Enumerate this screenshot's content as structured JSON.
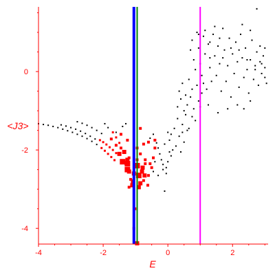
{
  "chart_data": {
    "type": "scatter",
    "title": "",
    "xlabel": "E",
    "ylabel": "<J3>",
    "xlim": [
      -4,
      3.1
    ],
    "ylim": [
      -4.4,
      1.65
    ],
    "xticks": [
      -4,
      -2,
      0,
      2
    ],
    "yticks": [
      -4,
      -2,
      0
    ],
    "xtick_labels": [
      "-4",
      "-2",
      "0",
      "2"
    ],
    "ytick_labels": [
      "-4",
      "-2",
      "0"
    ],
    "grid": false,
    "colors": {
      "axes": "#ff0000",
      "black_points": "#000000",
      "red_points": "#ff0000",
      "blue_line": "#0000ff",
      "green_line": "#008000",
      "magenta_line": "#ff00ff"
    },
    "vertical_lines": [
      {
        "color": "#0000ff",
        "x": -1.05
      },
      {
        "color": "#008000",
        "x": -0.95
      },
      {
        "color": "#ff00ff",
        "x": 1.0
      }
    ],
    "series": [
      {
        "color": "#000000",
        "marker": "small-square",
        "points": [
          [
            -4.0,
            -1.33
          ],
          [
            -3.85,
            -1.35
          ],
          [
            -3.7,
            -1.37
          ],
          [
            -3.55,
            -1.4
          ],
          [
            -3.4,
            -1.43
          ],
          [
            -3.25,
            -1.47
          ],
          [
            -3.1,
            -1.51
          ],
          [
            -2.95,
            -1.55
          ],
          [
            -2.8,
            -1.6
          ],
          [
            -2.65,
            -1.65
          ],
          [
            -2.5,
            -1.71
          ],
          [
            -2.35,
            -1.78
          ],
          [
            -2.2,
            -1.86
          ],
          [
            -3.3,
            -1.36
          ],
          [
            -3.15,
            -1.39
          ],
          [
            -3.0,
            -1.43
          ],
          [
            -2.85,
            -1.47
          ],
          [
            -2.7,
            -1.52
          ],
          [
            -2.55,
            -1.58
          ],
          [
            -2.4,
            -1.65
          ],
          [
            -2.25,
            -1.72
          ],
          [
            -2.8,
            -1.28
          ],
          [
            -2.65,
            -1.32
          ],
          [
            -2.5,
            -1.37
          ],
          [
            -2.35,
            -1.43
          ],
          [
            -2.2,
            -1.5
          ],
          [
            -2.05,
            -1.58
          ],
          [
            -1.95,
            -1.33
          ],
          [
            -1.85,
            -1.43
          ],
          [
            -1.4,
            -1.4
          ],
          [
            -1.3,
            -1.33
          ],
          [
            -1.6,
            -1.55
          ],
          [
            -0.55,
            -1.7
          ],
          [
            -0.45,
            -1.6
          ],
          [
            -0.35,
            -1.82
          ],
          [
            -0.3,
            -1.95
          ],
          [
            -0.25,
            -2.1
          ],
          [
            -0.2,
            -2.25
          ],
          [
            -0.15,
            -2.37
          ],
          [
            -0.1,
            -1.85
          ],
          [
            0.0,
            -1.55
          ],
          [
            0.05,
            -1.75
          ],
          [
            0.1,
            -1.6
          ],
          [
            0.15,
            -2.0
          ],
          [
            0.2,
            -1.45
          ],
          [
            0.25,
            -1.9
          ],
          [
            0.3,
            -1.2
          ],
          [
            0.35,
            -1.65
          ],
          [
            0.4,
            -2.05
          ],
          [
            0.45,
            -1.35
          ],
          [
            0.5,
            -1.8
          ],
          [
            0.55,
            -1.1
          ],
          [
            0.6,
            -1.5
          ],
          [
            -0.3,
            -2.65
          ],
          [
            -0.15,
            -2.5
          ],
          [
            0.0,
            -2.3
          ],
          [
            -0.05,
            -2.45
          ],
          [
            0.1,
            -2.15
          ],
          [
            -0.1,
            -3.05
          ],
          [
            -0.4,
            -2.3
          ],
          [
            -0.45,
            -2.55
          ],
          [
            0.3,
            -0.9
          ],
          [
            0.35,
            -0.5
          ],
          [
            0.4,
            -0.7
          ],
          [
            0.45,
            -0.3
          ],
          [
            0.5,
            -1.0
          ],
          [
            0.55,
            -0.6
          ],
          [
            0.6,
            -0.85
          ],
          [
            0.65,
            -0.2
          ],
          [
            0.7,
            -0.65
          ],
          [
            0.75,
            -0.45
          ],
          [
            0.8,
            -0.95
          ],
          [
            0.85,
            0.05
          ],
          [
            0.9,
            -0.35
          ],
          [
            0.95,
            -0.75
          ],
          [
            0.7,
            0.55
          ],
          [
            0.75,
            0.8
          ],
          [
            0.8,
            0.3
          ],
          [
            0.9,
            1.0
          ],
          [
            0.95,
            0.6
          ],
          [
            1.0,
            0.2
          ],
          [
            1.05,
            -0.1
          ],
          [
            1.1,
            0.9
          ],
          [
            1.15,
            0.45
          ],
          [
            1.2,
            -0.45
          ],
          [
            1.25,
            0.7
          ],
          [
            1.3,
            0.1
          ],
          [
            1.35,
            -0.25
          ],
          [
            1.4,
            0.95
          ],
          [
            1.45,
            0.4
          ],
          [
            1.5,
            -0.1
          ],
          [
            1.55,
            0.65
          ],
          [
            1.6,
            0.2
          ],
          [
            1.65,
            -0.5
          ],
          [
            1.7,
            1.1
          ],
          [
            1.75,
            0.55
          ],
          [
            1.8,
            -0.25
          ],
          [
            1.85,
            0.15
          ],
          [
            1.9,
            0.85
          ],
          [
            1.95,
            -0.65
          ],
          [
            2.0,
            0.45
          ],
          [
            2.05,
            -0.05
          ],
          [
            2.1,
            0.75
          ],
          [
            2.15,
            0.25
          ],
          [
            2.2,
            -0.4
          ],
          [
            2.25,
            0.95
          ],
          [
            2.3,
            0.35
          ],
          [
            2.35,
            -0.15
          ],
          [
            2.4,
            0.6
          ],
          [
            2.45,
            0.05
          ],
          [
            2.5,
            -0.55
          ],
          [
            2.55,
            0.3
          ],
          [
            2.6,
            0.8
          ],
          [
            2.65,
            -0.2
          ],
          [
            2.7,
            0.15
          ],
          [
            2.75,
            0.5
          ],
          [
            2.8,
            -0.35
          ],
          [
            2.85,
            0.25
          ],
          [
            2.9,
            -0.05
          ],
          [
            2.95,
            0.4
          ],
          [
            3.0,
            0.1
          ],
          [
            3.05,
            -0.3
          ],
          [
            2.15,
            -0.85
          ],
          [
            2.35,
            -0.95
          ],
          [
            2.55,
            -0.75
          ],
          [
            1.85,
            -0.95
          ],
          [
            1.55,
            -1.05
          ],
          [
            1.25,
            -0.85
          ],
          [
            1.05,
            -0.55
          ],
          [
            1.1,
            -0.3
          ],
          [
            1.3,
            0.35
          ],
          [
            1.6,
            0.85
          ],
          [
            1.95,
            0.6
          ],
          [
            2.2,
            0.55
          ],
          [
            2.45,
            0.3
          ],
          [
            2.7,
            0.05
          ],
          [
            2.9,
            0.2
          ],
          [
            3.0,
            -0.15
          ],
          [
            2.3,
            1.2
          ],
          [
            2.55,
            1.05
          ],
          [
            2.85,
            0.65
          ],
          [
            3.0,
            0.6
          ],
          [
            2.75,
            1.6
          ],
          [
            0.95,
            0.95
          ],
          [
            1.15,
            1.05
          ],
          [
            1.45,
            1.15
          ],
          [
            1.3,
            0.75
          ],
          [
            1.7,
            0.35
          ],
          [
            1.0,
            -0.9
          ],
          [
            0.75,
            -1.15
          ],
          [
            0.65,
            -1.45
          ],
          [
            0.45,
            -1.55
          ],
          [
            0.85,
            -1.25
          ],
          [
            -0.05,
            -2.6
          ],
          [
            0.05,
            -2.05
          ]
        ]
      },
      {
        "color": "#ff0000",
        "marker": "square",
        "points": [
          [
            -2.1,
            -1.75,
            1.5
          ],
          [
            -2.0,
            -1.8,
            1.5
          ],
          [
            -1.9,
            -1.86,
            1.5
          ],
          [
            -1.8,
            -1.93,
            1.5
          ],
          [
            -1.7,
            -2.0,
            1.5
          ],
          [
            -1.6,
            -2.08,
            1.5
          ],
          [
            -2.05,
            -1.95,
            1.5
          ],
          [
            -1.95,
            -2.02,
            1.5
          ],
          [
            -1.85,
            -2.1,
            1.5
          ],
          [
            -1.75,
            -2.18,
            1.5
          ],
          [
            -1.65,
            -2.26,
            1.5
          ],
          [
            -1.7,
            -1.55,
            1.5
          ],
          [
            -1.6,
            -1.68,
            1.5
          ],
          [
            -1.5,
            -1.82,
            1.5
          ],
          [
            -1.45,
            -1.95,
            2
          ],
          [
            -1.6,
            -1.88,
            2
          ],
          [
            -1.75,
            -1.72,
            2
          ],
          [
            -1.45,
            -1.6,
            2
          ],
          [
            -1.25,
            -1.75,
            2
          ],
          [
            -0.85,
            -1.45,
            2
          ],
          [
            -0.75,
            -1.85,
            2
          ],
          [
            -0.95,
            -1.95,
            2
          ],
          [
            -0.85,
            -2.1,
            2
          ],
          [
            -0.7,
            -2.25,
            2
          ],
          [
            -0.55,
            -2.35,
            2
          ],
          [
            -0.45,
            -2.2,
            2
          ],
          [
            -0.4,
            -1.95,
            2
          ],
          [
            -0.6,
            -1.8,
            2
          ],
          [
            -0.4,
            -1.75,
            2
          ],
          [
            -1.3,
            -2.35,
            2
          ],
          [
            -1.35,
            -2.05,
            3
          ],
          [
            -1.25,
            -2.25,
            3
          ],
          [
            -1.2,
            -2.55,
            3
          ],
          [
            -1.15,
            -2.75,
            2
          ],
          [
            -1.2,
            -2.2,
            2
          ],
          [
            -1.2,
            -2.95,
            2
          ],
          [
            -1.5,
            -2.1,
            3
          ],
          [
            -1.4,
            -2.3,
            4
          ],
          [
            -1.25,
            -2.35,
            4
          ],
          [
            -1.25,
            -2.5,
            4
          ],
          [
            -1.1,
            -2.9,
            3
          ],
          [
            -1.08,
            -2.8,
            3
          ],
          [
            -0.78,
            -2.45,
            3
          ],
          [
            -0.8,
            -2.55,
            3
          ],
          [
            -0.95,
            -2.4,
            4
          ],
          [
            -0.9,
            -2.65,
            4
          ],
          [
            -0.85,
            -2.85,
            3
          ],
          [
            -0.9,
            -2.95,
            3
          ],
          [
            -0.72,
            -2.65,
            3
          ],
          [
            -0.75,
            -2.78,
            2
          ],
          [
            -0.62,
            -2.9,
            2
          ],
          [
            -1.05,
            -2.6,
            3
          ],
          [
            -0.95,
            -2.25,
            2
          ],
          [
            -0.7,
            -2.35,
            2
          ],
          [
            -0.5,
            -2.45,
            2
          ],
          [
            -0.6,
            -2.65,
            2
          ],
          [
            -0.95,
            -4.38,
            3
          ],
          [
            -1.05,
            -4.0,
            2
          ],
          [
            -1.02,
            -3.5,
            2
          ]
        ]
      }
    ]
  }
}
